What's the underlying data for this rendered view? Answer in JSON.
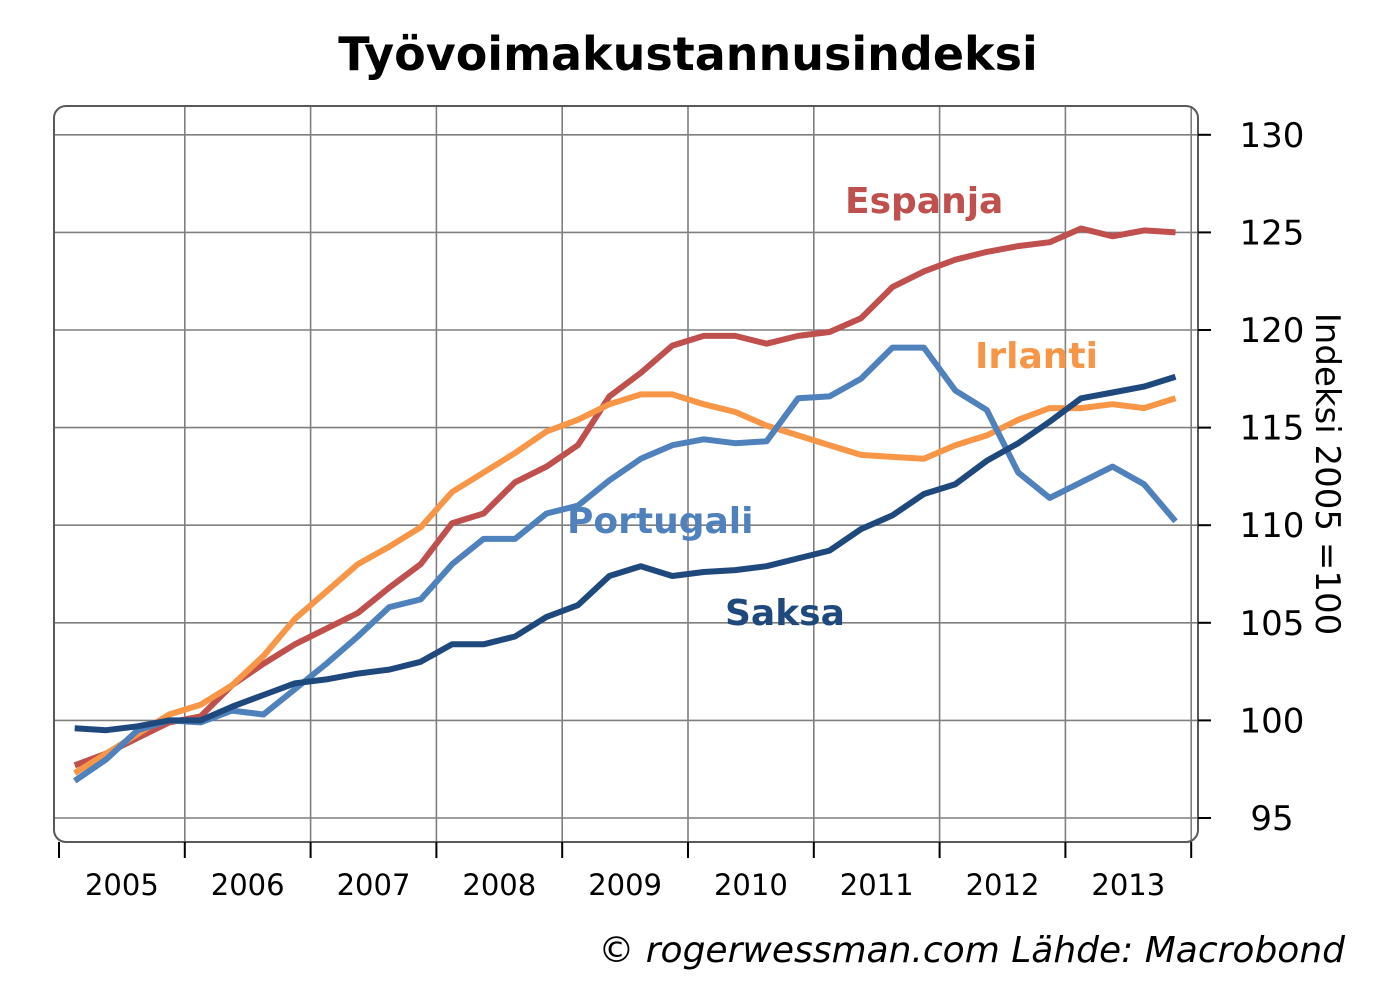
{
  "chart_data": {
    "type": "line",
    "title": "Työvoimakustannusindeksi",
    "ylabel": "Indeksi 2005 =100",
    "xlabel": "",
    "x_tick_labels": [
      "2005",
      "2006",
      "2007",
      "2008",
      "2009",
      "2010",
      "2011",
      "2012",
      "2013"
    ],
    "y_ticks": [
      95,
      100,
      105,
      110,
      115,
      120,
      125,
      130
    ],
    "ylim": [
      95,
      130
    ],
    "grid": true,
    "x": [
      2005.125,
      2005.375,
      2005.625,
      2005.875,
      2006.125,
      2006.375,
      2006.625,
      2006.875,
      2007.125,
      2007.375,
      2007.625,
      2007.875,
      2008.125,
      2008.375,
      2008.625,
      2008.875,
      2009.125,
      2009.375,
      2009.625,
      2009.875,
      2010.125,
      2010.375,
      2010.625,
      2010.875,
      2011.125,
      2011.375,
      2011.625,
      2011.875,
      2012.125,
      2012.375,
      2012.625,
      2012.875,
      2013.125,
      2013.375,
      2013.625,
      2013.875
    ],
    "series": [
      {
        "name": "Espanja",
        "color": "#c0504d",
        "values": [
          97.7,
          98.3,
          99.1,
          99.9,
          100.2,
          101.8,
          102.9,
          103.9,
          104.7,
          105.5,
          106.8,
          108.0,
          110.1,
          110.6,
          112.2,
          113.0,
          114.1,
          116.6,
          117.8,
          119.2,
          119.7,
          119.7,
          119.3,
          119.7,
          119.9,
          120.6,
          122.2,
          123.0,
          123.6,
          124.0,
          124.3,
          124.5,
          125.2,
          124.8,
          125.1,
          125.0
        ]
      },
      {
        "name": "Irlanti",
        "color": "#f79646",
        "values": [
          97.3,
          98.3,
          99.3,
          100.3,
          100.8,
          101.8,
          103.3,
          105.2,
          106.6,
          108.0,
          108.9,
          109.9,
          111.7,
          112.7,
          113.7,
          114.8,
          115.4,
          116.2,
          116.7,
          116.7,
          116.2,
          115.8,
          115.1,
          114.6,
          114.1,
          113.6,
          113.5,
          113.4,
          114.1,
          114.6,
          115.4,
          116.0,
          116.0,
          116.2,
          116.0,
          116.5
        ]
      },
      {
        "name": "Portugali",
        "color": "#4f81bd",
        "values": [
          96.9,
          98.0,
          99.5,
          100.0,
          99.9,
          100.5,
          100.3,
          101.6,
          102.9,
          104.3,
          105.8,
          106.2,
          108.0,
          109.3,
          109.3,
          110.6,
          111.0,
          112.3,
          113.4,
          114.1,
          114.4,
          114.2,
          114.3,
          116.5,
          116.6,
          117.5,
          119.1,
          119.1,
          116.9,
          115.9,
          112.7,
          111.4,
          112.2,
          113.0,
          112.1,
          110.2
        ]
      },
      {
        "name": "Saksa",
        "color": "#1f497d",
        "values": [
          99.6,
          99.5,
          99.7,
          100.0,
          100.0,
          100.7,
          101.3,
          101.9,
          102.1,
          102.4,
          102.6,
          103.0,
          103.9,
          103.9,
          104.3,
          105.3,
          105.9,
          107.4,
          107.9,
          107.4,
          107.6,
          107.7,
          107.9,
          108.3,
          108.7,
          109.8,
          110.5,
          111.6,
          112.1,
          113.3,
          114.2,
          115.3,
          116.5,
          116.8,
          117.1,
          117.6
        ]
      }
    ],
    "annotations": [
      {
        "text": "Espanja",
        "series": "Espanja"
      },
      {
        "text": "Irlanti",
        "series": "Irlanti"
      },
      {
        "text": "Portugali",
        "series": "Portugali"
      },
      {
        "text": "Saksa",
        "series": "Saksa"
      }
    ],
    "source_note": "© rogerwessman.com Lähde: Macrobond"
  }
}
